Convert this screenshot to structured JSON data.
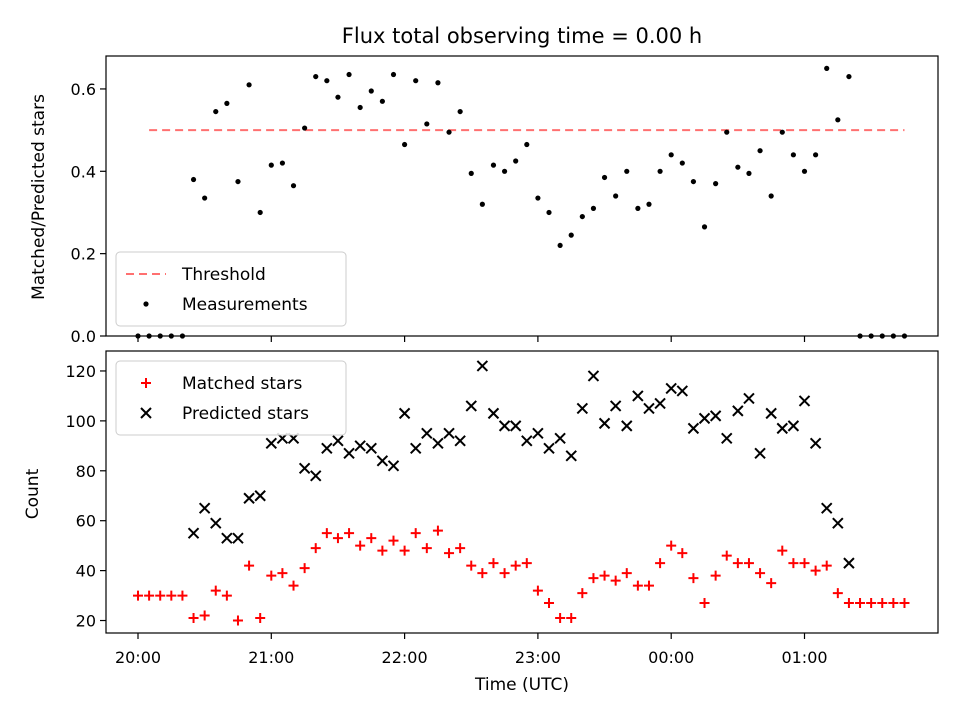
{
  "title": "Flux total observing time = 0.00 h",
  "xlabel": "Time (UTC)",
  "x_ticks": [
    "20:00",
    "21:00",
    "22:00",
    "23:00",
    "00:00",
    "01:00"
  ],
  "chart_data": [
    {
      "type": "scatter",
      "ylabel": "Matched/Predicted stars",
      "ylim": [
        0,
        0.68
      ],
      "y_ticks": [
        "0.0",
        "0.2",
        "0.4",
        "0.6"
      ],
      "legend_position": "lower-left",
      "threshold": {
        "name": "Threshold",
        "value": 0.5,
        "x_range": [
          "20:05",
          "01:45"
        ],
        "color": "#ff7070",
        "style": "dashed"
      },
      "series": [
        {
          "name": "Measurements",
          "color": "#000000",
          "marker": "dot",
          "x": [
            "20:00",
            "20:05",
            "20:10",
            "20:15",
            "20:20",
            "20:25",
            "20:30",
            "20:35",
            "20:40",
            "20:45",
            "20:50",
            "20:55",
            "21:00",
            "21:05",
            "21:10",
            "21:15",
            "21:20",
            "21:25",
            "21:30",
            "21:35",
            "21:40",
            "21:45",
            "21:50",
            "21:55",
            "22:00",
            "22:05",
            "22:10",
            "22:15",
            "22:20",
            "22:25",
            "22:30",
            "22:35",
            "22:40",
            "22:45",
            "22:50",
            "22:55",
            "23:00",
            "23:05",
            "23:10",
            "23:15",
            "23:20",
            "23:25",
            "23:30",
            "23:35",
            "23:40",
            "23:45",
            "23:50",
            "23:55",
            "00:00",
            "00:05",
            "00:10",
            "00:15",
            "00:20",
            "00:25",
            "00:30",
            "00:35",
            "00:40",
            "00:45",
            "00:50",
            "00:55",
            "01:00",
            "01:05",
            "01:10",
            "01:15",
            "01:20",
            "01:25",
            "01:30",
            "01:35",
            "01:40",
            "01:45"
          ],
          "y": [
            0.0,
            0.0,
            0.0,
            0.0,
            0.0,
            0.38,
            0.335,
            0.545,
            0.565,
            0.375,
            0.61,
            0.3,
            0.415,
            0.42,
            0.365,
            0.505,
            0.63,
            0.62,
            0.58,
            0.635,
            0.555,
            0.595,
            0.57,
            0.635,
            0.465,
            0.62,
            0.515,
            0.615,
            0.495,
            0.545,
            0.395,
            0.32,
            0.415,
            0.4,
            0.425,
            0.465,
            0.335,
            0.3,
            0.22,
            0.245,
            0.29,
            0.31,
            0.385,
            0.34,
            0.4,
            0.31,
            0.32,
            0.4,
            0.44,
            0.42,
            0.375,
            0.265,
            0.37,
            0.495,
            0.41,
            0.395,
            0.45,
            0.34,
            0.495,
            0.44,
            0.4,
            0.44,
            0.65,
            0.525,
            0.63,
            0.0,
            0.0,
            0.0,
            0.0,
            0.0
          ]
        }
      ]
    },
    {
      "type": "scatter",
      "ylabel": "Count",
      "ylim": [
        15,
        128
      ],
      "y_ticks": [
        "20",
        "40",
        "60",
        "80",
        "100",
        "120"
      ],
      "legend_position": "top-left",
      "series": [
        {
          "name": "Matched stars",
          "color": "#ff0000",
          "marker": "plus",
          "x": [
            "20:00",
            "20:05",
            "20:10",
            "20:15",
            "20:20",
            "20:25",
            "20:30",
            "20:35",
            "20:40",
            "20:45",
            "20:50",
            "20:55",
            "21:00",
            "21:05",
            "21:10",
            "21:15",
            "21:20",
            "21:25",
            "21:30",
            "21:35",
            "21:40",
            "21:45",
            "21:50",
            "21:55",
            "22:00",
            "22:05",
            "22:10",
            "22:15",
            "22:20",
            "22:25",
            "22:30",
            "22:35",
            "22:40",
            "22:45",
            "22:50",
            "22:55",
            "23:00",
            "23:05",
            "23:10",
            "23:15",
            "23:20",
            "23:25",
            "23:30",
            "23:35",
            "23:40",
            "23:45",
            "23:50",
            "23:55",
            "00:00",
            "00:05",
            "00:10",
            "00:15",
            "00:20",
            "00:25",
            "00:30",
            "00:35",
            "00:40",
            "00:45",
            "00:50",
            "00:55",
            "01:00",
            "01:05",
            "01:10",
            "01:15",
            "01:20",
            "01:25",
            "01:30",
            "01:35",
            "01:40",
            "01:45"
          ],
          "y": [
            30,
            30,
            30,
            30,
            30,
            21,
            22,
            32,
            30,
            20,
            42,
            21,
            38,
            39,
            34,
            41,
            49,
            55,
            53,
            55,
            50,
            53,
            48,
            52,
            48,
            55,
            49,
            56,
            47,
            49,
            42,
            39,
            43,
            39,
            42,
            43,
            32,
            27,
            21,
            21,
            31,
            37,
            38,
            36,
            39,
            34,
            34,
            43,
            50,
            47,
            37,
            27,
            38,
            46,
            43,
            43,
            39,
            35,
            48,
            43,
            43,
            40,
            42,
            31,
            27,
            27,
            27,
            27,
            27,
            27
          ]
        },
        {
          "name": "Predicted stars",
          "color": "#000000",
          "marker": "cross",
          "x": [
            "20:25",
            "20:30",
            "20:35",
            "20:40",
            "20:45",
            "20:50",
            "20:55",
            "21:00",
            "21:05",
            "21:10",
            "21:15",
            "21:20",
            "21:25",
            "21:30",
            "21:35",
            "21:40",
            "21:45",
            "21:50",
            "21:55",
            "22:00",
            "22:05",
            "22:10",
            "22:15",
            "22:20",
            "22:25",
            "22:30",
            "22:35",
            "22:40",
            "22:45",
            "22:50",
            "22:55",
            "23:00",
            "23:05",
            "23:10",
            "23:15",
            "23:20",
            "23:25",
            "23:30",
            "23:35",
            "23:40",
            "23:45",
            "23:50",
            "23:55",
            "00:00",
            "00:05",
            "00:10",
            "00:15",
            "00:20",
            "00:25",
            "00:30",
            "00:35",
            "00:40",
            "00:45",
            "00:50",
            "00:55",
            "01:00",
            "01:05",
            "01:10",
            "01:15",
            "01:20"
          ],
          "y": [
            55,
            65,
            59,
            53,
            53,
            69,
            70,
            91,
            93,
            93,
            81,
            78,
            89,
            92,
            87,
            90,
            89,
            84,
            82,
            103,
            89,
            95,
            91,
            95,
            92,
            106,
            122,
            103,
            98,
            98,
            92,
            95,
            89,
            93,
            86,
            105,
            118,
            99,
            106,
            98,
            110,
            105,
            107,
            113,
            112,
            97,
            101,
            102,
            93,
            104,
            109,
            87,
            103,
            97,
            98,
            108,
            91,
            65,
            59,
            43
          ]
        }
      ]
    }
  ]
}
